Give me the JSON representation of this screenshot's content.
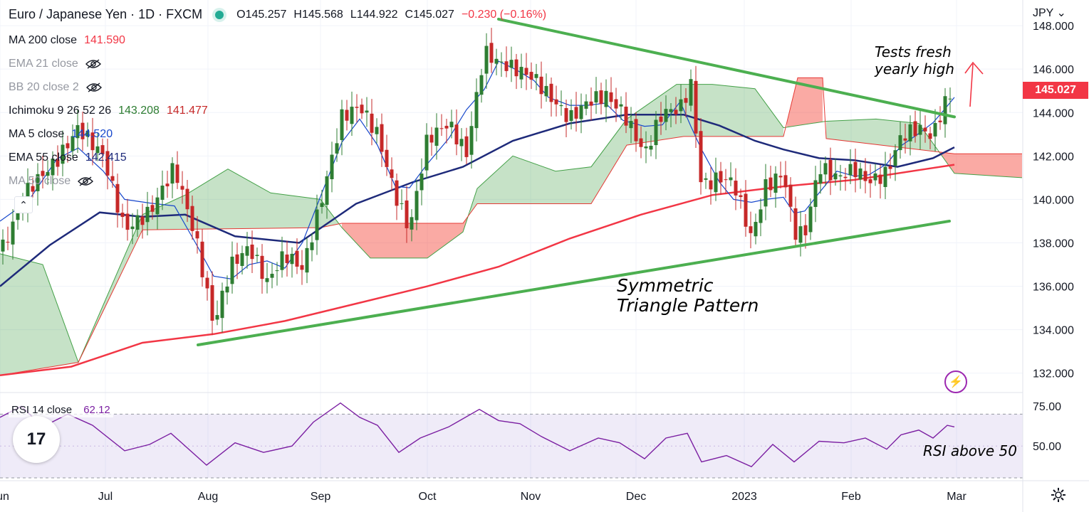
{
  "header": {
    "symbol": "Euro / Japanese Yen · 1D · FXCM",
    "open": "O145.257",
    "high": "H145.568",
    "low": "L144.922",
    "close": "C145.027",
    "change": "−0.230 (−0.16%)"
  },
  "indicators": [
    {
      "label": "MA 200 close",
      "value": "141.590",
      "value2": "",
      "color": "#f23645",
      "hidden": false
    },
    {
      "label": "EMA 21 close",
      "value": "",
      "value2": "",
      "color": "#9598a1",
      "hidden": true
    },
    {
      "label": "BB 20 close 2",
      "value": "",
      "value2": "",
      "color": "#9598a1",
      "hidden": true
    },
    {
      "label": "Ichimoku 9 26 52 26",
      "value": "143.208",
      "value2": "141.477",
      "color": "#43a047",
      "hidden": false
    },
    {
      "label": "MA 5 close",
      "value": "144.520",
      "value2": "",
      "color": "#1848cc",
      "hidden": false
    },
    {
      "label": "EMA 55 close",
      "value": "142.415",
      "value2": "",
      "color": "#1e2a7a",
      "hidden": false
    },
    {
      "label": "MA 50 close",
      "value": "",
      "value2": "",
      "color": "#9598a1",
      "hidden": true
    }
  ],
  "currency": "JPY",
  "last_price": "145.027",
  "rsi": {
    "label": "RSI 14 close",
    "value": "62.12"
  },
  "annotations": {
    "tests_line1": "Tests fresh",
    "tests_line2": "yearly high",
    "pattern_line1": "Symmetric",
    "pattern_line2": "Triangle Pattern",
    "rsi_note": "RSI above 50"
  },
  "logo_text": "17",
  "colors": {
    "up": "#26a69a",
    "down": "#ef5350",
    "candle_up": "#2e7d32",
    "candle_down": "#c62828",
    "trend": "#4caf50",
    "rsi": "#7b1fa2"
  },
  "chart_data": [
    {
      "type": "candlestick",
      "title": "Euro / Japanese Yen · 1D · FXCM",
      "x_tick_labels": [
        "Jun",
        "Jul",
        "Aug",
        "Sep",
        "Oct",
        "Nov",
        "Dec",
        "2023",
        "Feb",
        "Mar"
      ],
      "y_tick_labels": [
        "148.000",
        "146.000",
        "144.000",
        "142.000",
        "140.000",
        "138.000",
        "136.000",
        "134.000",
        "132.000"
      ],
      "ylim": [
        131.5,
        148.2
      ],
      "last": 145.027,
      "close_path": [
        {
          "x": 0,
          "y": 137.5
        },
        {
          "x": 40,
          "y": 140.5
        },
        {
          "x": 80,
          "y": 141.8
        },
        {
          "x": 110,
          "y": 143.3
        },
        {
          "x": 145,
          "y": 142.0
        },
        {
          "x": 175,
          "y": 138.6
        },
        {
          "x": 210,
          "y": 139.4
        },
        {
          "x": 245,
          "y": 141.5
        },
        {
          "x": 275,
          "y": 138.2
        },
        {
          "x": 300,
          "y": 134.2
        },
        {
          "x": 325,
          "y": 137.0
        },
        {
          "x": 350,
          "y": 137.8
        },
        {
          "x": 375,
          "y": 136.2
        },
        {
          "x": 400,
          "y": 137.5
        },
        {
          "x": 425,
          "y": 136.8
        },
        {
          "x": 450,
          "y": 139.8
        },
        {
          "x": 480,
          "y": 143.8
        },
        {
          "x": 505,
          "y": 144.3
        },
        {
          "x": 530,
          "y": 143.0
        },
        {
          "x": 555,
          "y": 140.2
        },
        {
          "x": 575,
          "y": 138.6
        },
        {
          "x": 600,
          "y": 142.8
        },
        {
          "x": 630,
          "y": 143.5
        },
        {
          "x": 655,
          "y": 142.1
        },
        {
          "x": 680,
          "y": 146.8
        },
        {
          "x": 700,
          "y": 146.3
        },
        {
          "x": 725,
          "y": 146.0
        },
        {
          "x": 750,
          "y": 145.6
        },
        {
          "x": 770,
          "y": 144.8
        },
        {
          "x": 800,
          "y": 143.7
        },
        {
          "x": 825,
          "y": 144.5
        },
        {
          "x": 850,
          "y": 144.8
        },
        {
          "x": 875,
          "y": 144.0
        },
        {
          "x": 905,
          "y": 142.1
        },
        {
          "x": 930,
          "y": 144.0
        },
        {
          "x": 955,
          "y": 144.2
        },
        {
          "x": 970,
          "y": 145.3
        },
        {
          "x": 985,
          "y": 140.6
        },
        {
          "x": 1010,
          "y": 141.0
        },
        {
          "x": 1030,
          "y": 140.8
        },
        {
          "x": 1055,
          "y": 138.2
        },
        {
          "x": 1075,
          "y": 140.6
        },
        {
          "x": 1100,
          "y": 141.2
        },
        {
          "x": 1115,
          "y": 138.5
        },
        {
          "x": 1130,
          "y": 138.4
        },
        {
          "x": 1150,
          "y": 141.5
        },
        {
          "x": 1175,
          "y": 141.0
        },
        {
          "x": 1200,
          "y": 141.4
        },
        {
          "x": 1220,
          "y": 140.8
        },
        {
          "x": 1245,
          "y": 141.2
        },
        {
          "x": 1265,
          "y": 142.9
        },
        {
          "x": 1290,
          "y": 143.3
        },
        {
          "x": 1310,
          "y": 142.9
        },
        {
          "x": 1325,
          "y": 144.4
        },
        {
          "x": 1340,
          "y": 145.0
        }
      ],
      "series": [
        {
          "name": "MA 200 close",
          "color": "#f23645",
          "values": [
            {
              "x": 0,
              "y": 131.9
            },
            {
              "x": 100,
              "y": 132.3
            },
            {
              "x": 200,
              "y": 133.4
            },
            {
              "x": 300,
              "y": 133.8
            },
            {
              "x": 400,
              "y": 134.4
            },
            {
              "x": 500,
              "y": 135.2
            },
            {
              "x": 600,
              "y": 136.0
            },
            {
              "x": 700,
              "y": 136.9
            },
            {
              "x": 800,
              "y": 138.2
            },
            {
              "x": 900,
              "y": 139.3
            },
            {
              "x": 1000,
              "y": 140.2
            },
            {
              "x": 1100,
              "y": 140.6
            },
            {
              "x": 1200,
              "y": 140.9
            },
            {
              "x": 1300,
              "y": 141.4
            },
            {
              "x": 1340,
              "y": 141.6
            }
          ]
        },
        {
          "name": "EMA 55 close",
          "color": "#1e2a7a",
          "values": [
            {
              "x": 0,
              "y": 136.0
            },
            {
              "x": 70,
              "y": 137.9
            },
            {
              "x": 140,
              "y": 139.4
            },
            {
              "x": 200,
              "y": 139.2
            },
            {
              "x": 260,
              "y": 139.3
            },
            {
              "x": 330,
              "y": 138.3
            },
            {
              "x": 420,
              "y": 138.0
            },
            {
              "x": 500,
              "y": 139.8
            },
            {
              "x": 580,
              "y": 140.8
            },
            {
              "x": 650,
              "y": 141.5
            },
            {
              "x": 720,
              "y": 142.7
            },
            {
              "x": 800,
              "y": 143.5
            },
            {
              "x": 880,
              "y": 143.9
            },
            {
              "x": 960,
              "y": 143.9
            },
            {
              "x": 1010,
              "y": 143.4
            },
            {
              "x": 1060,
              "y": 142.7
            },
            {
              "x": 1100,
              "y": 142.3
            },
            {
              "x": 1150,
              "y": 141.9
            },
            {
              "x": 1200,
              "y": 141.8
            },
            {
              "x": 1260,
              "y": 141.5
            },
            {
              "x": 1310,
              "y": 141.9
            },
            {
              "x": 1340,
              "y": 142.4
            }
          ]
        }
      ],
      "ichimoku_span_a": [
        {
          "x": 0,
          "y": 137.5
        },
        {
          "x": 60,
          "y": 137.0
        },
        {
          "x": 110,
          "y": 132.5
        },
        {
          "x": 200,
          "y": 139.3
        },
        {
          "x": 260,
          "y": 140.2
        },
        {
          "x": 320,
          "y": 141.4
        },
        {
          "x": 380,
          "y": 140.3
        },
        {
          "x": 450,
          "y": 140.0
        },
        {
          "x": 480,
          "y": 138.7
        },
        {
          "x": 520,
          "y": 137.3
        },
        {
          "x": 600,
          "y": 137.3
        },
        {
          "x": 650,
          "y": 138.5
        },
        {
          "x": 670,
          "y": 140.5
        },
        {
          "x": 720,
          "y": 142.0
        },
        {
          "x": 780,
          "y": 141.3
        },
        {
          "x": 830,
          "y": 141.5
        },
        {
          "x": 880,
          "y": 143.7
        },
        {
          "x": 950,
          "y": 145.3
        },
        {
          "x": 1000,
          "y": 145.3
        },
        {
          "x": 1060,
          "y": 145.1
        },
        {
          "x": 1100,
          "y": 143.3
        },
        {
          "x": 1160,
          "y": 143.6
        },
        {
          "x": 1230,
          "y": 143.7
        },
        {
          "x": 1290,
          "y": 143.5
        },
        {
          "x": 1340,
          "y": 141.2
        },
        {
          "x": 1435,
          "y": 141.0
        }
      ],
      "ichimoku_span_b": [
        {
          "x": 0,
          "y": 131.9
        },
        {
          "x": 110,
          "y": 132.5
        },
        {
          "x": 200,
          "y": 138.6
        },
        {
          "x": 450,
          "y": 138.7
        },
        {
          "x": 480,
          "y": 138.9
        },
        {
          "x": 650,
          "y": 138.9
        },
        {
          "x": 670,
          "y": 139.8
        },
        {
          "x": 830,
          "y": 139.8
        },
        {
          "x": 880,
          "y": 142.5
        },
        {
          "x": 960,
          "y": 142.9
        },
        {
          "x": 1100,
          "y": 142.9
        },
        {
          "x": 1120,
          "y": 145.6
        },
        {
          "x": 1155,
          "y": 145.6
        },
        {
          "x": 1160,
          "y": 142.8
        },
        {
          "x": 1340,
          "y": 142.1
        },
        {
          "x": 1435,
          "y": 142.1
        }
      ],
      "trendlines": [
        {
          "label": "upper",
          "points": [
            {
              "x": 700,
              "y": 148.3
            },
            {
              "x": 1340,
              "y": 143.8
            }
          ]
        },
        {
          "label": "lower",
          "points": [
            {
              "x": 278,
              "y": 133.3
            },
            {
              "x": 1333,
              "y": 139.0
            }
          ]
        }
      ]
    },
    {
      "type": "line",
      "title": "RSI 14 close",
      "y_tick_labels": [
        "75.00",
        "50.00"
      ],
      "ylim": [
        30,
        80
      ],
      "bands": [
        30,
        70
      ],
      "series": [
        {
          "name": "RSI 14 close",
          "color": "#7b1fa2",
          "values": [
            {
              "x": 0,
              "y": 68
            },
            {
              "x": 30,
              "y": 75
            },
            {
              "x": 60,
              "y": 62
            },
            {
              "x": 95,
              "y": 70
            },
            {
              "x": 130,
              "y": 63
            },
            {
              "x": 175,
              "y": 47
            },
            {
              "x": 210,
              "y": 51
            },
            {
              "x": 240,
              "y": 58
            },
            {
              "x": 290,
              "y": 38
            },
            {
              "x": 330,
              "y": 52
            },
            {
              "x": 370,
              "y": 46
            },
            {
              "x": 410,
              "y": 50
            },
            {
              "x": 440,
              "y": 65
            },
            {
              "x": 478,
              "y": 77
            },
            {
              "x": 505,
              "y": 68
            },
            {
              "x": 530,
              "y": 63
            },
            {
              "x": 560,
              "y": 46
            },
            {
              "x": 590,
              "y": 55
            },
            {
              "x": 630,
              "y": 62
            },
            {
              "x": 673,
              "y": 73
            },
            {
              "x": 700,
              "y": 66
            },
            {
              "x": 730,
              "y": 64
            },
            {
              "x": 760,
              "y": 56
            },
            {
              "x": 800,
              "y": 47
            },
            {
              "x": 840,
              "y": 55
            },
            {
              "x": 870,
              "y": 52
            },
            {
              "x": 905,
              "y": 42
            },
            {
              "x": 935,
              "y": 55
            },
            {
              "x": 965,
              "y": 58
            },
            {
              "x": 985,
              "y": 40
            },
            {
              "x": 1020,
              "y": 44
            },
            {
              "x": 1055,
              "y": 37
            },
            {
              "x": 1085,
              "y": 51
            },
            {
              "x": 1115,
              "y": 40
            },
            {
              "x": 1150,
              "y": 53
            },
            {
              "x": 1185,
              "y": 52
            },
            {
              "x": 1215,
              "y": 55
            },
            {
              "x": 1245,
              "y": 48
            },
            {
              "x": 1265,
              "y": 57
            },
            {
              "x": 1290,
              "y": 60
            },
            {
              "x": 1310,
              "y": 55
            },
            {
              "x": 1330,
              "y": 63
            },
            {
              "x": 1340,
              "y": 62
            }
          ]
        }
      ],
      "last": 62.12
    }
  ]
}
